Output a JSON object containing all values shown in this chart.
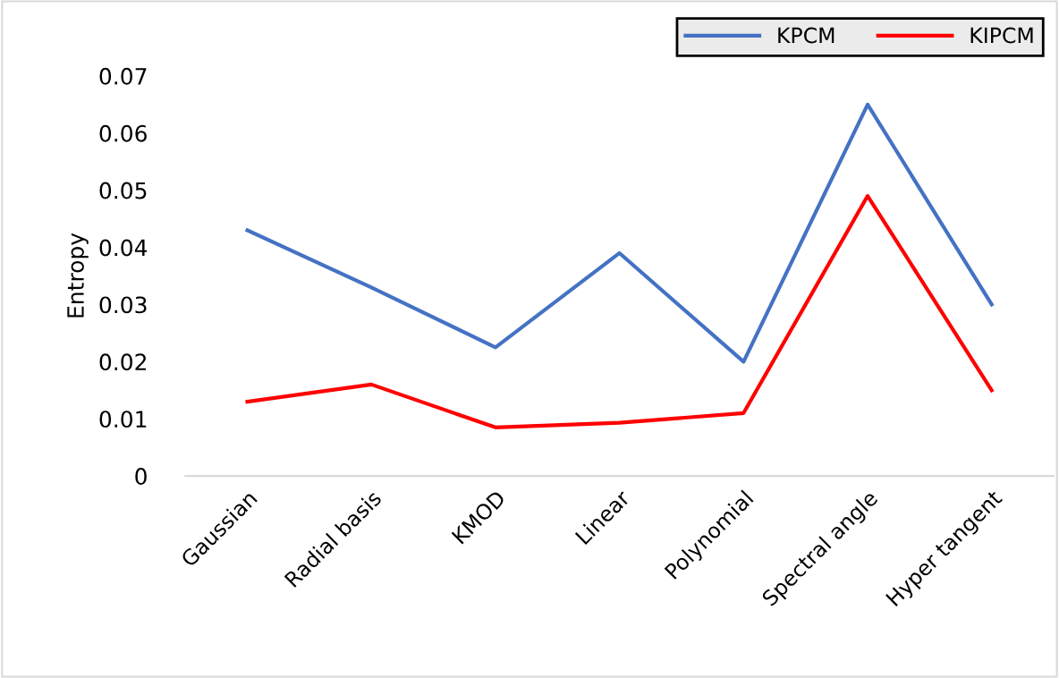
{
  "chart_data": {
    "type": "line",
    "ylabel": "Entropy",
    "categories": [
      "Gaussian",
      "Radial basis",
      "KMOD",
      "Linear",
      "Polynomial",
      "Spectral angle",
      "Hyper tangent"
    ],
    "series": [
      {
        "name": "KPCM",
        "color": "#4472c4",
        "values": [
          0.043,
          0.033,
          0.0225,
          0.039,
          0.02,
          0.065,
          0.03
        ]
      },
      {
        "name": "KIPCM",
        "color": "#ff0000",
        "values": [
          0.013,
          0.016,
          0.0085,
          0.0093,
          0.011,
          0.049,
          0.015
        ]
      }
    ],
    "ylim": [
      0,
      0.07
    ],
    "yticks": [
      {
        "value": 0,
        "label": "0"
      },
      0.01,
      0.02,
      0.03,
      0.04,
      0.05,
      0.06,
      0.07
    ],
    "grid": false,
    "legend": "top right",
    "marker": "none",
    "line_style": "solid"
  }
}
